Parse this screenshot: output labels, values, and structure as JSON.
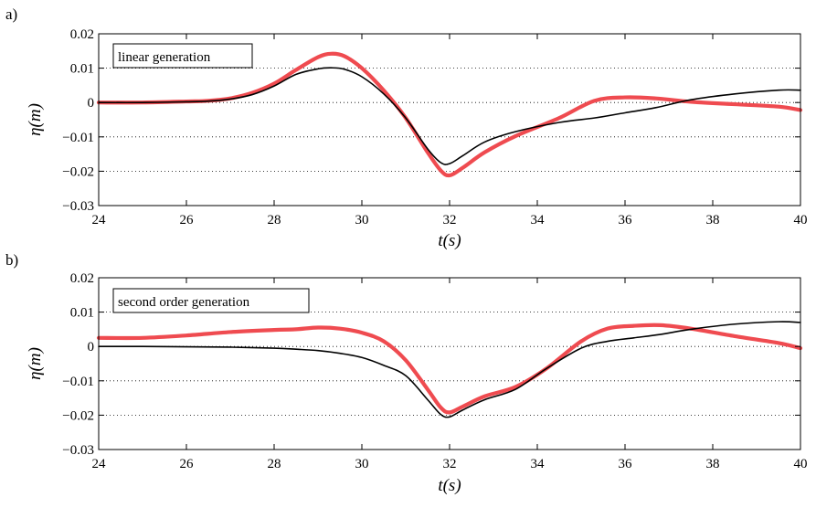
{
  "chart_data": [
    {
      "type": "line",
      "panel_label": "a)",
      "annotation": "linear generation",
      "xlabel": "t(s)",
      "ylabel": "η(m)",
      "xlim": [
        24,
        40
      ],
      "ylim": [
        -0.03,
        0.02
      ],
      "xticks": [
        24,
        26,
        28,
        30,
        32,
        34,
        36,
        38,
        40
      ],
      "yticks": [
        0.02,
        0.01,
        0,
        -0.01,
        -0.02,
        -0.03
      ],
      "ytick_labels": [
        "0.02",
        "0.01",
        "0",
        "−0.01",
        "−0.02",
        "−0.03"
      ],
      "grid": "horizontal dotted",
      "series": [
        {
          "color": "#ef4b50",
          "style": "thick",
          "x": [
            24,
            25,
            26,
            26.5,
            27,
            27.5,
            28,
            28.5,
            29,
            29.3,
            29.6,
            30,
            30.5,
            31,
            31.5,
            31.8,
            32,
            32.3,
            32.8,
            33.5,
            34.5,
            35.3,
            36,
            36.7,
            37.5,
            38.5,
            39.5,
            40
          ],
          "y": [
            0,
            0,
            0.0003,
            0.0005,
            0.0012,
            0.0028,
            0.0055,
            0.0095,
            0.0132,
            0.0142,
            0.0135,
            0.01,
            0.0035,
            -0.0045,
            -0.0145,
            -0.0198,
            -0.0212,
            -0.019,
            -0.0145,
            -0.0098,
            -0.0045,
            0.0005,
            0.0015,
            0.0012,
            0.0002,
            -0.0005,
            -0.0012,
            -0.0022
          ]
        },
        {
          "color": "#000000",
          "style": "thin",
          "x": [
            24,
            25,
            26,
            26.5,
            27,
            27.5,
            28,
            28.5,
            29,
            29.3,
            29.6,
            30,
            30.5,
            31,
            31.5,
            31.8,
            32,
            32.3,
            32.8,
            33.5,
            34.5,
            35.3,
            36,
            36.7,
            37.5,
            38.5,
            39.5,
            40
          ],
          "y": [
            0,
            0,
            0.0002,
            0.0004,
            0.001,
            0.0023,
            0.0048,
            0.0082,
            0.0098,
            0.0101,
            0.0097,
            0.0075,
            0.0025,
            -0.0045,
            -0.0135,
            -0.0175,
            -0.0178,
            -0.0155,
            -0.0115,
            -0.0085,
            -0.0058,
            -0.0045,
            -0.003,
            -0.0015,
            0.0008,
            0.0025,
            0.0036,
            0.0036
          ]
        }
      ]
    },
    {
      "type": "line",
      "panel_label": "b)",
      "annotation": "second order generation",
      "xlabel": "t(s)",
      "ylabel": "η(m)",
      "xlim": [
        24,
        40
      ],
      "ylim": [
        -0.03,
        0.02
      ],
      "xticks": [
        24,
        26,
        28,
        30,
        32,
        34,
        36,
        38,
        40
      ],
      "yticks": [
        0.02,
        0.01,
        0,
        -0.01,
        -0.02,
        -0.03
      ],
      "ytick_labels": [
        "0.02",
        "0.01",
        "0",
        "−0.01",
        "−0.02",
        "−0.03"
      ],
      "grid": "horizontal dotted",
      "series": [
        {
          "color": "#ef4b50",
          "style": "thick",
          "x": [
            24,
            25,
            26,
            27,
            28,
            28.5,
            29,
            29.5,
            30,
            30.5,
            31,
            31.5,
            31.8,
            32,
            32.3,
            32.8,
            33.5,
            34.2,
            35,
            35.6,
            36.2,
            36.8,
            37.5,
            38.5,
            39.5,
            40
          ],
          "y": [
            0.0025,
            0.0025,
            0.0032,
            0.0042,
            0.0048,
            0.005,
            0.0055,
            0.0052,
            0.004,
            0.0015,
            -0.004,
            -0.0125,
            -0.0178,
            -0.0192,
            -0.0175,
            -0.0145,
            -0.0118,
            -0.0065,
            0.0015,
            0.0052,
            0.006,
            0.0062,
            0.0052,
            0.003,
            0.001,
            -0.0005
          ]
        },
        {
          "color": "#000000",
          "style": "thin",
          "x": [
            24,
            25,
            26,
            27,
            28,
            28.5,
            29,
            29.5,
            30,
            30.5,
            31,
            31.5,
            31.8,
            32,
            32.3,
            32.8,
            33.5,
            34.2,
            35,
            35.6,
            36.2,
            36.8,
            37.5,
            38.5,
            39.5,
            40
          ],
          "y": [
            0,
            0,
            -0.0001,
            -0.0002,
            -0.0005,
            -0.0008,
            -0.0012,
            -0.002,
            -0.0032,
            -0.0055,
            -0.0085,
            -0.0155,
            -0.0198,
            -0.0205,
            -0.0185,
            -0.0155,
            -0.0125,
            -0.0065,
            -0.0005,
            0.0015,
            0.0025,
            0.0035,
            0.005,
            0.0065,
            0.0072,
            0.007
          ]
        }
      ]
    }
  ]
}
